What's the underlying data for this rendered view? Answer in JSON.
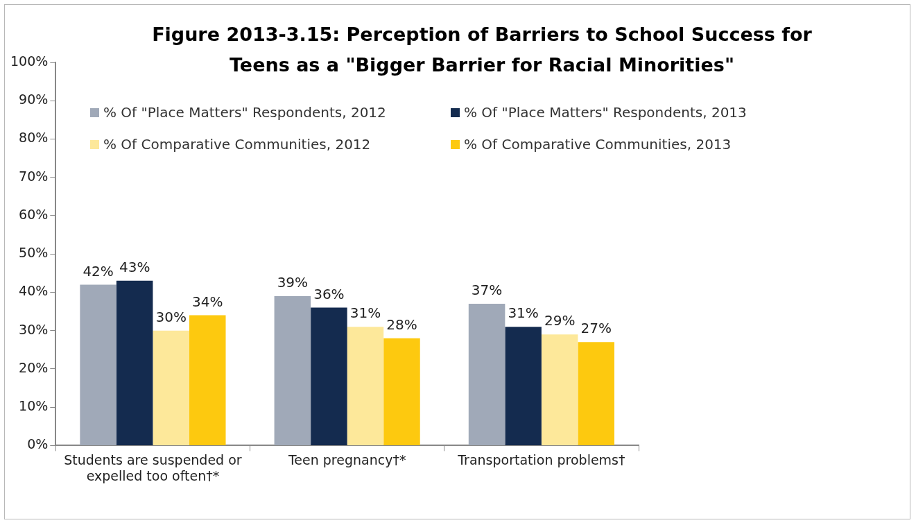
{
  "chart_data": {
    "type": "bar",
    "title": "Figure 2013-3.15: Perception of Barriers to School Success for Teens as a \"Bigger Barrier for Racial Minorities\"",
    "categories": [
      "Students are suspended or expelled too often†*",
      "Teen pregnancy†*",
      "Transportation problems†"
    ],
    "series": [
      {
        "name": "% Of \"Place Matters\" Respondents, 2012",
        "color": "#a0a9b8",
        "values": [
          42,
          39,
          37
        ],
        "value_labels": [
          "42%",
          "39%",
          "37%"
        ]
      },
      {
        "name": "% Of \"Place Matters\" Respondents, 2013",
        "color": "#142b4f",
        "values": [
          43,
          36,
          31
        ],
        "value_labels": [
          "43%",
          "36%",
          "31%"
        ]
      },
      {
        "name": "% Of Comparative Communities, 2012",
        "color": "#fde89a",
        "values": [
          30,
          31,
          29
        ],
        "value_labels": [
          "30%",
          "31%",
          "29%"
        ]
      },
      {
        "name": "% Of Comparative Communities, 2013",
        "color": "#fdc90f",
        "values": [
          34,
          28,
          27
        ],
        "value_labels": [
          "34%",
          "28%",
          "27%"
        ]
      }
    ],
    "ylim": [
      0,
      100
    ],
    "yticks": [
      {
        "value": 0,
        "label": "0%"
      },
      {
        "value": 10,
        "label": "10%"
      },
      {
        "value": 20,
        "label": "20%"
      },
      {
        "value": 30,
        "label": "30%"
      },
      {
        "value": 40,
        "label": "40%"
      },
      {
        "value": 50,
        "label": "50%"
      },
      {
        "value": 60,
        "label": "60%"
      },
      {
        "value": 70,
        "label": "70%"
      },
      {
        "value": 80,
        "label": "80%"
      },
      {
        "value": 90,
        "label": "90%"
      },
      {
        "value": 100,
        "label": "100%"
      }
    ],
    "grid": false,
    "legend": "top"
  }
}
